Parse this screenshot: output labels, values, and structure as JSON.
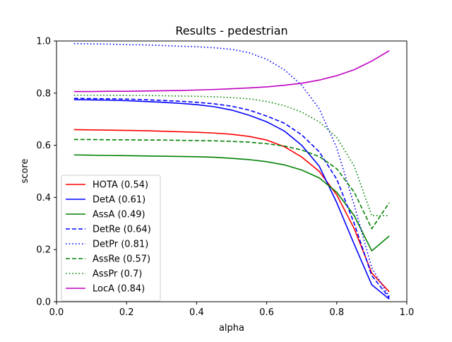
{
  "chart_data": {
    "type": "line",
    "title": "Results - pedestrian",
    "xlabel": "alpha",
    "ylabel": "score",
    "xlim": [
      0.0,
      1.0
    ],
    "ylim": [
      0.0,
      1.0
    ],
    "xticks": [
      0.0,
      0.2,
      0.4,
      0.6,
      0.8,
      1.0
    ],
    "yticks": [
      0.0,
      0.2,
      0.4,
      0.6,
      0.8,
      1.0
    ],
    "xtick_labels": [
      "0.0",
      "0.2",
      "0.4",
      "0.6",
      "0.8",
      "1.0"
    ],
    "ytick_labels": [
      "0.0",
      "0.2",
      "0.4",
      "0.6",
      "0.8",
      "1.0"
    ],
    "grid": false,
    "legend_position": "lower-left",
    "x": [
      0.05,
      0.1,
      0.15,
      0.2,
      0.25,
      0.3,
      0.35,
      0.4,
      0.45,
      0.5,
      0.55,
      0.6,
      0.65,
      0.7,
      0.75,
      0.8,
      0.85,
      0.9,
      0.95
    ],
    "series": [
      {
        "name": "HOTA (0.54)",
        "color": "#ff0000",
        "style": "solid",
        "values": [
          0.66,
          0.659,
          0.658,
          0.657,
          0.656,
          0.654,
          0.652,
          0.65,
          0.647,
          0.642,
          0.634,
          0.62,
          0.595,
          0.555,
          0.5,
          0.41,
          0.28,
          0.11,
          0.038
        ]
      },
      {
        "name": "DetA (0.61)",
        "color": "#0000ff",
        "style": "solid",
        "values": [
          0.775,
          0.774,
          0.773,
          0.771,
          0.768,
          0.765,
          0.761,
          0.756,
          0.748,
          0.735,
          0.715,
          0.69,
          0.655,
          0.6,
          0.52,
          0.38,
          0.22,
          0.065,
          0.01
        ]
      },
      {
        "name": "AssA (0.49)",
        "color": "#008000",
        "style": "solid",
        "values": [
          0.563,
          0.562,
          0.561,
          0.56,
          0.559,
          0.558,
          0.557,
          0.556,
          0.554,
          0.55,
          0.545,
          0.537,
          0.525,
          0.505,
          0.475,
          0.42,
          0.33,
          0.195,
          0.252
        ]
      },
      {
        "name": "DetRe (0.64)",
        "color": "#0000ff",
        "style": "dashed",
        "values": [
          0.78,
          0.779,
          0.778,
          0.777,
          0.775,
          0.772,
          0.769,
          0.765,
          0.759,
          0.75,
          0.735,
          0.712,
          0.685,
          0.64,
          0.575,
          0.47,
          0.3,
          0.1,
          0.015
        ]
      },
      {
        "name": "DetPr (0.81)",
        "color": "#0000ff",
        "style": "dotted",
        "values": [
          0.99,
          0.989,
          0.988,
          0.986,
          0.985,
          0.983,
          0.98,
          0.978,
          0.974,
          0.968,
          0.955,
          0.93,
          0.89,
          0.83,
          0.74,
          0.59,
          0.37,
          0.13,
          0.02
        ]
      },
      {
        "name": "AssRe (0.57)",
        "color": "#008000",
        "style": "dashed",
        "values": [
          0.622,
          0.622,
          0.621,
          0.621,
          0.62,
          0.62,
          0.619,
          0.618,
          0.617,
          0.615,
          0.612,
          0.606,
          0.597,
          0.582,
          0.557,
          0.51,
          0.42,
          0.28,
          0.38
        ]
      },
      {
        "name": "AssPr (0.7)",
        "color": "#008000",
        "style": "dotted",
        "values": [
          0.792,
          0.792,
          0.792,
          0.791,
          0.791,
          0.79,
          0.789,
          0.788,
          0.786,
          0.783,
          0.778,
          0.768,
          0.752,
          0.727,
          0.69,
          0.63,
          0.52,
          0.33,
          0.33
        ]
      },
      {
        "name": "LocA (0.84)",
        "color": "#bf00bf",
        "style": "solid",
        "values": [
          0.806,
          0.806,
          0.807,
          0.807,
          0.808,
          0.809,
          0.81,
          0.812,
          0.814,
          0.817,
          0.82,
          0.824,
          0.83,
          0.838,
          0.85,
          0.867,
          0.89,
          0.923,
          0.963
        ]
      }
    ]
  }
}
